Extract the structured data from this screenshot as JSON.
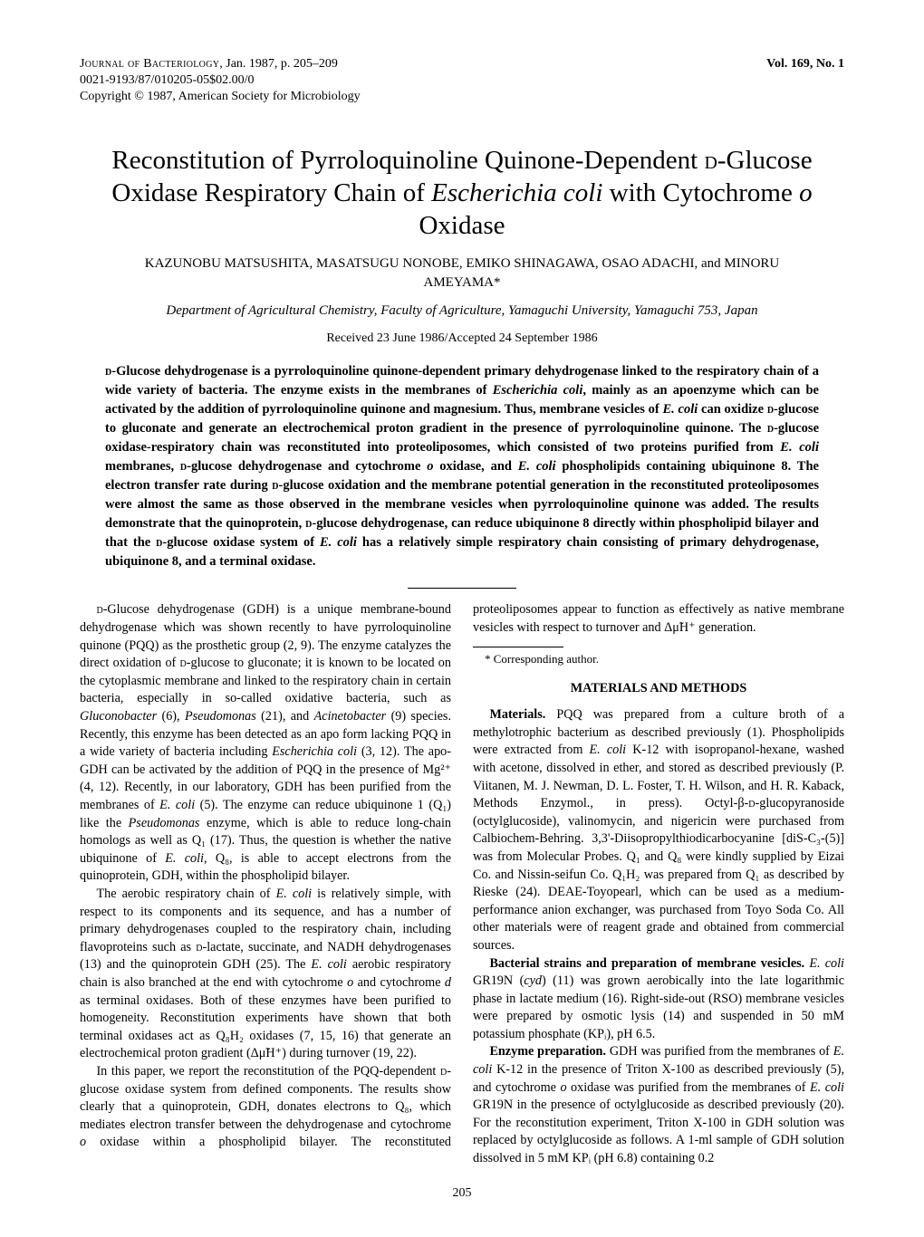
{
  "header": {
    "line1_a": "Journal of Bacteriology",
    "line1_b": ", Jan. 1987, p. 205–209",
    "line2": "0021-9193/87/010205-05$02.00/0",
    "line3": "Copyright © 1987, American Society for Microbiology",
    "vol": "Vol. 169, No. 1"
  },
  "title": {
    "t1": "Reconstitution of Pyrroloquinoline Quinone-Dependent ",
    "t2": "d",
    "t3": "-Glucose Oxidase Respiratory Chain of ",
    "t4": "Escherichia coli",
    "t5": " with Cytochrome ",
    "t6": "o",
    "t7": " Oxidase"
  },
  "authors": "KAZUNOBU MATSUSHITA, MASATSUGU NONOBE, EMIKO SHINAGAWA, OSAO ADACHI, and MINORU AMEYAMA*",
  "affiliation": "Department of Agricultural Chemistry, Faculty of Agriculture, Yamaguchi University, Yamaguchi 753, Japan",
  "received": "Received 23 June 1986/Accepted 24 September 1986",
  "abstract": {
    "a1": "d",
    "a2": "-Glucose dehydrogenase is a pyrroloquinoline quinone-dependent primary dehydrogenase linked to the respiratory chain of a wide variety of bacteria. The enzyme exists in the membranes of ",
    "a3": "Escherichia coli",
    "a4": ", mainly as an apoenzyme which can be activated by the addition of pyrroloquinoline quinone and magnesium. Thus, membrane vesicles of ",
    "a5": "E. coli",
    "a6": " can oxidize ",
    "a7": "d",
    "a8": "-glucose to gluconate and generate an electrochemical proton gradient in the presence of pyrroloquinoline quinone. The ",
    "a9": "d",
    "a10": "-glucose oxidase-respiratory chain was reconstituted into proteoliposomes, which consisted of two proteins purified from ",
    "a11": "E. coli",
    "a12": " membranes, ",
    "a13": "d",
    "a14": "-glucose dehydrogenase and cytochrome ",
    "a15": "o",
    "a16": " oxidase, and ",
    "a17": "E. coli",
    "a18": " phospholipids containing ubiquinone 8. The electron transfer rate during ",
    "a19": "d",
    "a20": "-glucose oxidation and the membrane potential generation in the reconstituted proteoliposomes were almost the same as those observed in the membrane vesicles when pyrroloquinoline quinone was added. The results demonstrate that the quinoprotein, ",
    "a21": "d",
    "a22": "-glucose dehydrogenase, can reduce ubiquinone 8 directly within phospholipid bilayer and that the ",
    "a23": "d",
    "a24": "-glucose oxidase system of ",
    "a25": "E. coli",
    "a26": " has a relatively simple respiratory chain consisting of primary dehydrogenase, ubiquinone 8, and a terminal oxidase."
  },
  "body": {
    "p1a": "d",
    "p1b": "-Glucose dehydrogenase (GDH) is a unique membrane-bound dehydrogenase which was shown recently to have pyrroloquinoline quinone (PQQ) as the prosthetic group (2, 9). The enzyme catalyzes the direct oxidation of ",
    "p1c": "d",
    "p1d": "-glucose to gluconate; it is known to be located on the cytoplasmic membrane and linked to the respiratory chain in certain bacteria, especially in so-called oxidative bacteria, such as ",
    "p1e": "Gluconobacter",
    "p1f": " (6), ",
    "p1g": "Pseudomonas",
    "p1h": " (21), and ",
    "p1i": "Acinetobacter",
    "p1j": " (9) species. Recently, this enzyme has been detected as an apo form lacking PQQ in a wide variety of bacteria including ",
    "p1k": "Escherichia coli",
    "p1l": " (3, 12). The apo-GDH can be activated by the addition of PQQ in the presence of Mg²⁺ (4, 12). Recently, in our laboratory, GDH has been purified from the membranes of ",
    "p1m": "E. coli",
    "p1n": " (5). The enzyme can reduce ubiquinone 1 (Q₁) like the ",
    "p1o": "Pseudomonas",
    "p1p": " enzyme, which is able to reduce long-chain homologs as well as Q₁ (17). Thus, the question is whether the native ubiquinone of ",
    "p1q": "E. coli",
    "p1r": ", Q₈, is able to accept electrons from the quinoprotein, GDH, within the phospholipid bilayer.",
    "p2a": "The aerobic respiratory chain of ",
    "p2b": "E. coli",
    "p2c": " is relatively simple, with respect to its components and its sequence, and has a number of primary dehydrogenases coupled to the respiratory chain, including flavoproteins such as ",
    "p2d": "d",
    "p2e": "-lactate, succinate, and NADH dehydrogenases (13) and the quinoprotein GDH (25). The ",
    "p2f": "E. coli",
    "p2g": " aerobic respiratory chain is also branched at the end with cytochrome ",
    "p2h": "o",
    "p2i": " and cytochrome ",
    "p2j": "d",
    "p2k": " as terminal oxidases. Both of these enzymes have been purified to homogeneity. Reconstitution experiments have shown that both terminal oxidases act as Q₈H₂ oxidases (7, 15, 16) that generate an electrochemical proton gradient (Δμ̃H⁺) during turnover (19, 22).",
    "p3a": "In this paper, we report the reconstitution of the PQQ-dependent ",
    "p3b": "d",
    "p3c": "-glucose oxidase system from defined components. The results show clearly that a quinoprotein, GDH, donates electrons to Q₈, which mediates electron transfer between the dehydrogenase and cytochrome ",
    "p3d": "o",
    "p3e": " oxidase within a phospholipid bilayer. The reconstituted proteoliposomes appear to function as effectively as native membrane vesicles with respect to turnover and Δμ̃H⁺ generation.",
    "mmhead": "MATERIALS AND METHODS",
    "p4a": "Materials.",
    "p4b": " PQQ was prepared from a culture broth of a methylotrophic bacterium as described previously (1). Phospholipids were extracted from ",
    "p4c": "E. coli",
    "p4d": " K-12 with isopropanol-hexane, washed with acetone, dissolved in ether, and stored as described previously (P. Viitanen, M. J. Newman, D. L. Foster, T. H. Wilson, and H. R. Kaback, Methods Enzymol., in press). Octyl-β-",
    "p4e": "d",
    "p4f": "-glucopyranoside (octylglucoside), valinomycin, and nigericin were purchased from Calbiochem-Behring. 3,3'-Diisopropylthiodicarbocyanine [diS-C₃-(5)] was from Molecular Probes. Q₁ and Q₈ were kindly supplied by Eizai Co. and Nissin-seifun Co. Q₁H₂ was prepared from Q₁ as described by Rieske (24). DEAE-Toyopearl, which can be used as a medium-performance anion exchanger, was purchased from Toyo Soda Co. All other materials were of reagent grade and obtained from commercial sources.",
    "p5a": "Bacterial strains and preparation of membrane vesicles.",
    "p5b": " ",
    "p5c": "E. coli",
    "p5d": " GR19N (",
    "p5e": "cyd",
    "p5f": ") (11) was grown aerobically into the late logarithmic phase in lactate medium (16). Right-side-out (RSO) membrane vesicles were prepared by osmotic lysis (14) and suspended in 50 mM potassium phosphate (KPᵢ), pH 6.5.",
    "p6a": "Enzyme preparation.",
    "p6b": " GDH was purified from the membranes of ",
    "p6c": "E. coli",
    "p6d": " K-12 in the presence of Triton X-100 as described previously (5), and cytochrome ",
    "p6e": "o",
    "p6f": " oxidase was purified from the membranes of ",
    "p6g": "E. coli",
    "p6h": " GR19N in the presence of octylglucoside as described previously (20). For the reconstitution experiment, Triton X-100 in GDH solution was replaced by octylglucoside as follows. A 1-ml sample of GDH solution dissolved in 5 mM KPᵢ (pH 6.8) containing 0.2"
  },
  "footnote": "* Corresponding author.",
  "pagenum": "205"
}
